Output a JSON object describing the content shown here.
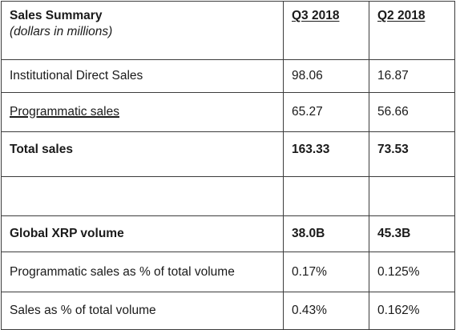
{
  "table": {
    "title": "Sales Summary",
    "subtitle": "(dollars in millions)",
    "columns": [
      "Q3 2018",
      "Q2 2018"
    ],
    "rows": [
      {
        "label": "Institutional Direct Sales",
        "q3": "98.06",
        "q2": "16.87"
      },
      {
        "label": "Programmatic sales",
        "q3": "65.27",
        "q2": "56.66"
      },
      {
        "label": "Total sales",
        "q3": "163.33",
        "q2": "73.53"
      },
      {
        "label": "",
        "q3": "",
        "q2": ""
      },
      {
        "label": "Global XRP volume",
        "q3": "38.0B",
        "q2": "45.3B"
      },
      {
        "label": "Programmatic sales as % of total volume",
        "q3": "0.17%",
        "q2": "0.125%"
      },
      {
        "label": "Sales as % of total volume",
        "q3": "0.43%",
        "q2": "0.162%"
      }
    ]
  }
}
